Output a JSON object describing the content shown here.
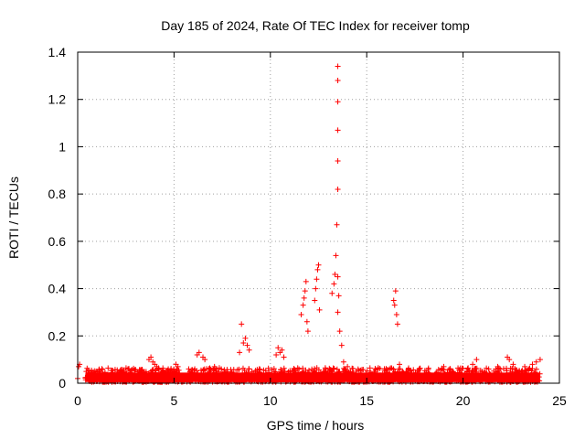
{
  "chart_data": {
    "type": "scatter",
    "title": "Day 185 of 2024, Rate Of TEC Index for receiver tomp",
    "xlabel": "GPS time / hours",
    "ylabel": "ROTI / TECUs",
    "xlim": [
      0,
      25
    ],
    "ylim": [
      0,
      1.4
    ],
    "x_ticks": [
      "0",
      "5",
      "10",
      "15",
      "20",
      "25"
    ],
    "y_ticks": [
      "0",
      "0.2",
      "0.4",
      "0.6",
      "0.8",
      "1",
      "1.2",
      "1.4"
    ],
    "grid": true,
    "marker": "+",
    "color": "#ff0000",
    "series": [
      {
        "x": [
          0.0,
          0.05,
          0.1,
          2.4,
          3.7,
          3.8,
          3.9,
          4.0,
          4.1,
          4.2,
          5.1,
          5.2,
          6.2,
          6.3,
          6.5,
          6.6,
          7.1,
          7.2,
          8.4,
          8.5,
          8.6,
          8.7,
          8.8,
          8.9,
          10.3,
          10.4,
          10.5,
          10.6,
          10.7,
          11.6,
          11.7,
          11.75,
          11.8,
          11.85,
          11.9,
          11.95,
          12.3,
          12.35,
          12.4,
          12.45,
          12.5,
          12.55,
          13.2,
          13.3,
          13.35,
          13.4,
          13.45,
          13.5,
          13.5,
          13.5,
          13.5,
          13.5,
          13.5,
          13.5,
          13.5,
          13.55,
          13.6,
          13.7,
          13.8,
          14.0,
          16.4,
          16.45,
          16.5,
          16.55,
          16.6,
          16.7,
          18.9,
          19.0,
          20.3,
          20.5,
          20.7,
          21.7,
          21.8,
          22.3,
          22.4,
          22.6,
          23.2,
          23.4,
          23.6,
          23.8,
          24.0
        ],
        "y": [
          0.02,
          0.07,
          0.08,
          0.05,
          0.1,
          0.11,
          0.09,
          0.08,
          0.07,
          0.06,
          0.08,
          0.07,
          0.12,
          0.13,
          0.11,
          0.1,
          0.07,
          0.06,
          0.13,
          0.25,
          0.17,
          0.19,
          0.16,
          0.14,
          0.12,
          0.15,
          0.13,
          0.14,
          0.11,
          0.29,
          0.33,
          0.36,
          0.39,
          0.43,
          0.26,
          0.22,
          0.35,
          0.4,
          0.44,
          0.48,
          0.5,
          0.31,
          0.38,
          0.42,
          0.46,
          0.54,
          0.67,
          0.82,
          0.94,
          1.07,
          1.19,
          1.28,
          1.34,
          0.45,
          0.3,
          0.37,
          0.22,
          0.16,
          0.09,
          0.07,
          0.35,
          0.33,
          0.39,
          0.29,
          0.25,
          0.08,
          0.06,
          0.07,
          0.05,
          0.08,
          0.1,
          0.06,
          0.07,
          0.11,
          0.1,
          0.08,
          0.07,
          0.06,
          0.08,
          0.09,
          0.1
        ]
      }
    ]
  }
}
